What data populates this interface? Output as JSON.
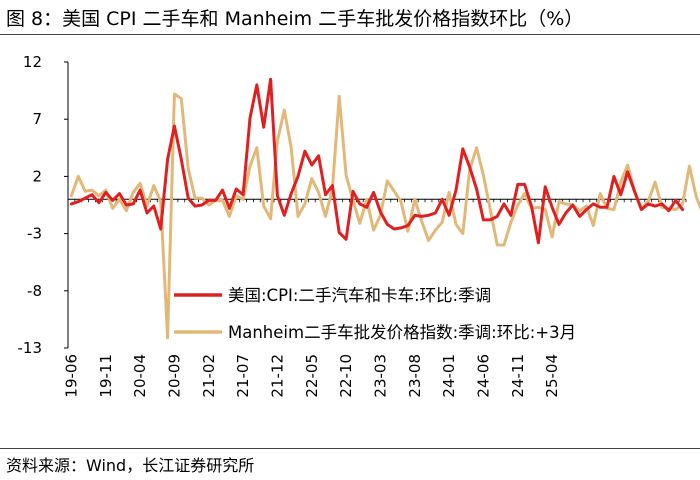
{
  "header": {
    "title": "图 8：美国 CPI 二手车和 Manheim 二手车批发价格指数环比（%）"
  },
  "footer": {
    "source": "资料来源：Wind，长江证券研究所"
  },
  "chart_data": {
    "type": "line",
    "title": "图 8：美国 CPI 二手车和 Manheim 二手车批发价格指数环比（%）",
    "xlabel": "",
    "ylabel": "",
    "ylim": [
      -13,
      12
    ],
    "yticks": [
      12,
      7,
      2,
      -3,
      -8,
      -13
    ],
    "x_start": "2019-06",
    "x_tick_labels": [
      "19-06",
      "19-11",
      "20-04",
      "20-09",
      "21-02",
      "21-07",
      "21-12",
      "22-05",
      "22-10",
      "23-03",
      "23-08",
      "24-01",
      "24-06",
      "24-11",
      "25-04"
    ],
    "x_tick_step_months": 5,
    "grid": false,
    "legend_position": "bottom-center",
    "series": [
      {
        "name": "美国:CPI:二手汽车和卡车:环比:季调",
        "color": "#E02020",
        "values": [
          -0.4,
          -0.2,
          0.1,
          0.4,
          -0.3,
          0.6,
          -0.1,
          0.5,
          -0.5,
          -0.4,
          0.8,
          -1.2,
          -0.6,
          -2.6,
          3.5,
          6.4,
          3.5,
          0.1,
          -0.6,
          -0.5,
          -0.1,
          -0.1,
          0.8,
          -0.8,
          0.9,
          0.4,
          7.1,
          10.0,
          6.3,
          10.5,
          0.3,
          -1.4,
          0.5,
          2.0,
          4.2,
          3.0,
          3.8,
          0.4,
          1.2,
          -2.9,
          -3.5,
          0.7,
          -0.4,
          -0.7,
          0.6,
          -1.1,
          -2.2,
          -2.6,
          -2.5,
          -2.3,
          -1.4,
          -1.5,
          -1.4,
          -1.2,
          0.0,
          -1.4,
          0.8,
          4.4,
          2.8,
          0.9,
          -1.8,
          -1.8,
          -1.5,
          -0.4,
          -1.4,
          1.3,
          1.3,
          -0.6,
          -3.8,
          1.1,
          -0.7,
          -2.2,
          -1.2,
          -0.5,
          -1.5,
          -0.9,
          -0.4,
          -0.7,
          -0.7,
          2.0,
          0.4,
          2.4,
          0.7,
          -0.9,
          -0.4,
          -0.6,
          -0.4,
          -1.0,
          -0.1,
          -0.9
        ]
      },
      {
        "name": "Manheim二手车批发价格指数:季调:环比:+3月",
        "color": "#E2B878",
        "values": [
          0.3,
          2.0,
          0.7,
          0.8,
          0.3,
          0.8,
          -0.8,
          0.0,
          -1.0,
          0.6,
          1.4,
          -0.6,
          1.2,
          -0.2,
          -12.1,
          9.2,
          8.8,
          2.7,
          0.1,
          0.1,
          -0.5,
          -0.1,
          -0.1,
          -1.5,
          0.3,
          0.0,
          2.9,
          4.5,
          -0.6,
          -1.7,
          5.1,
          7.8,
          4.5,
          -1.5,
          -0.4,
          1.8,
          0.6,
          -1.5,
          0.9,
          9.0,
          2.1,
          -0.1,
          -2.1,
          0.0,
          -2.7,
          -1.4,
          1.6,
          0.7,
          -0.2,
          -2.8,
          0.0,
          -1.9,
          -3.6,
          -2.7,
          -2.0,
          0.6,
          -2.2,
          -3.0,
          2.6,
          4.5,
          2.1,
          -0.9,
          -4.0,
          -4.0,
          -2.0,
          -0.5,
          0.5,
          -0.8,
          -0.7,
          -0.9,
          -3.3,
          -0.2,
          -0.4,
          -0.5,
          -1.0,
          -0.6,
          -2.3,
          0.5,
          -0.8,
          -0.9,
          1.5,
          3.0,
          0.7,
          -0.8,
          -0.2,
          1.5,
          -0.7,
          -0.8,
          -0.9,
          -0.4,
          2.9,
          0.2,
          -1.3
        ]
      }
    ]
  }
}
